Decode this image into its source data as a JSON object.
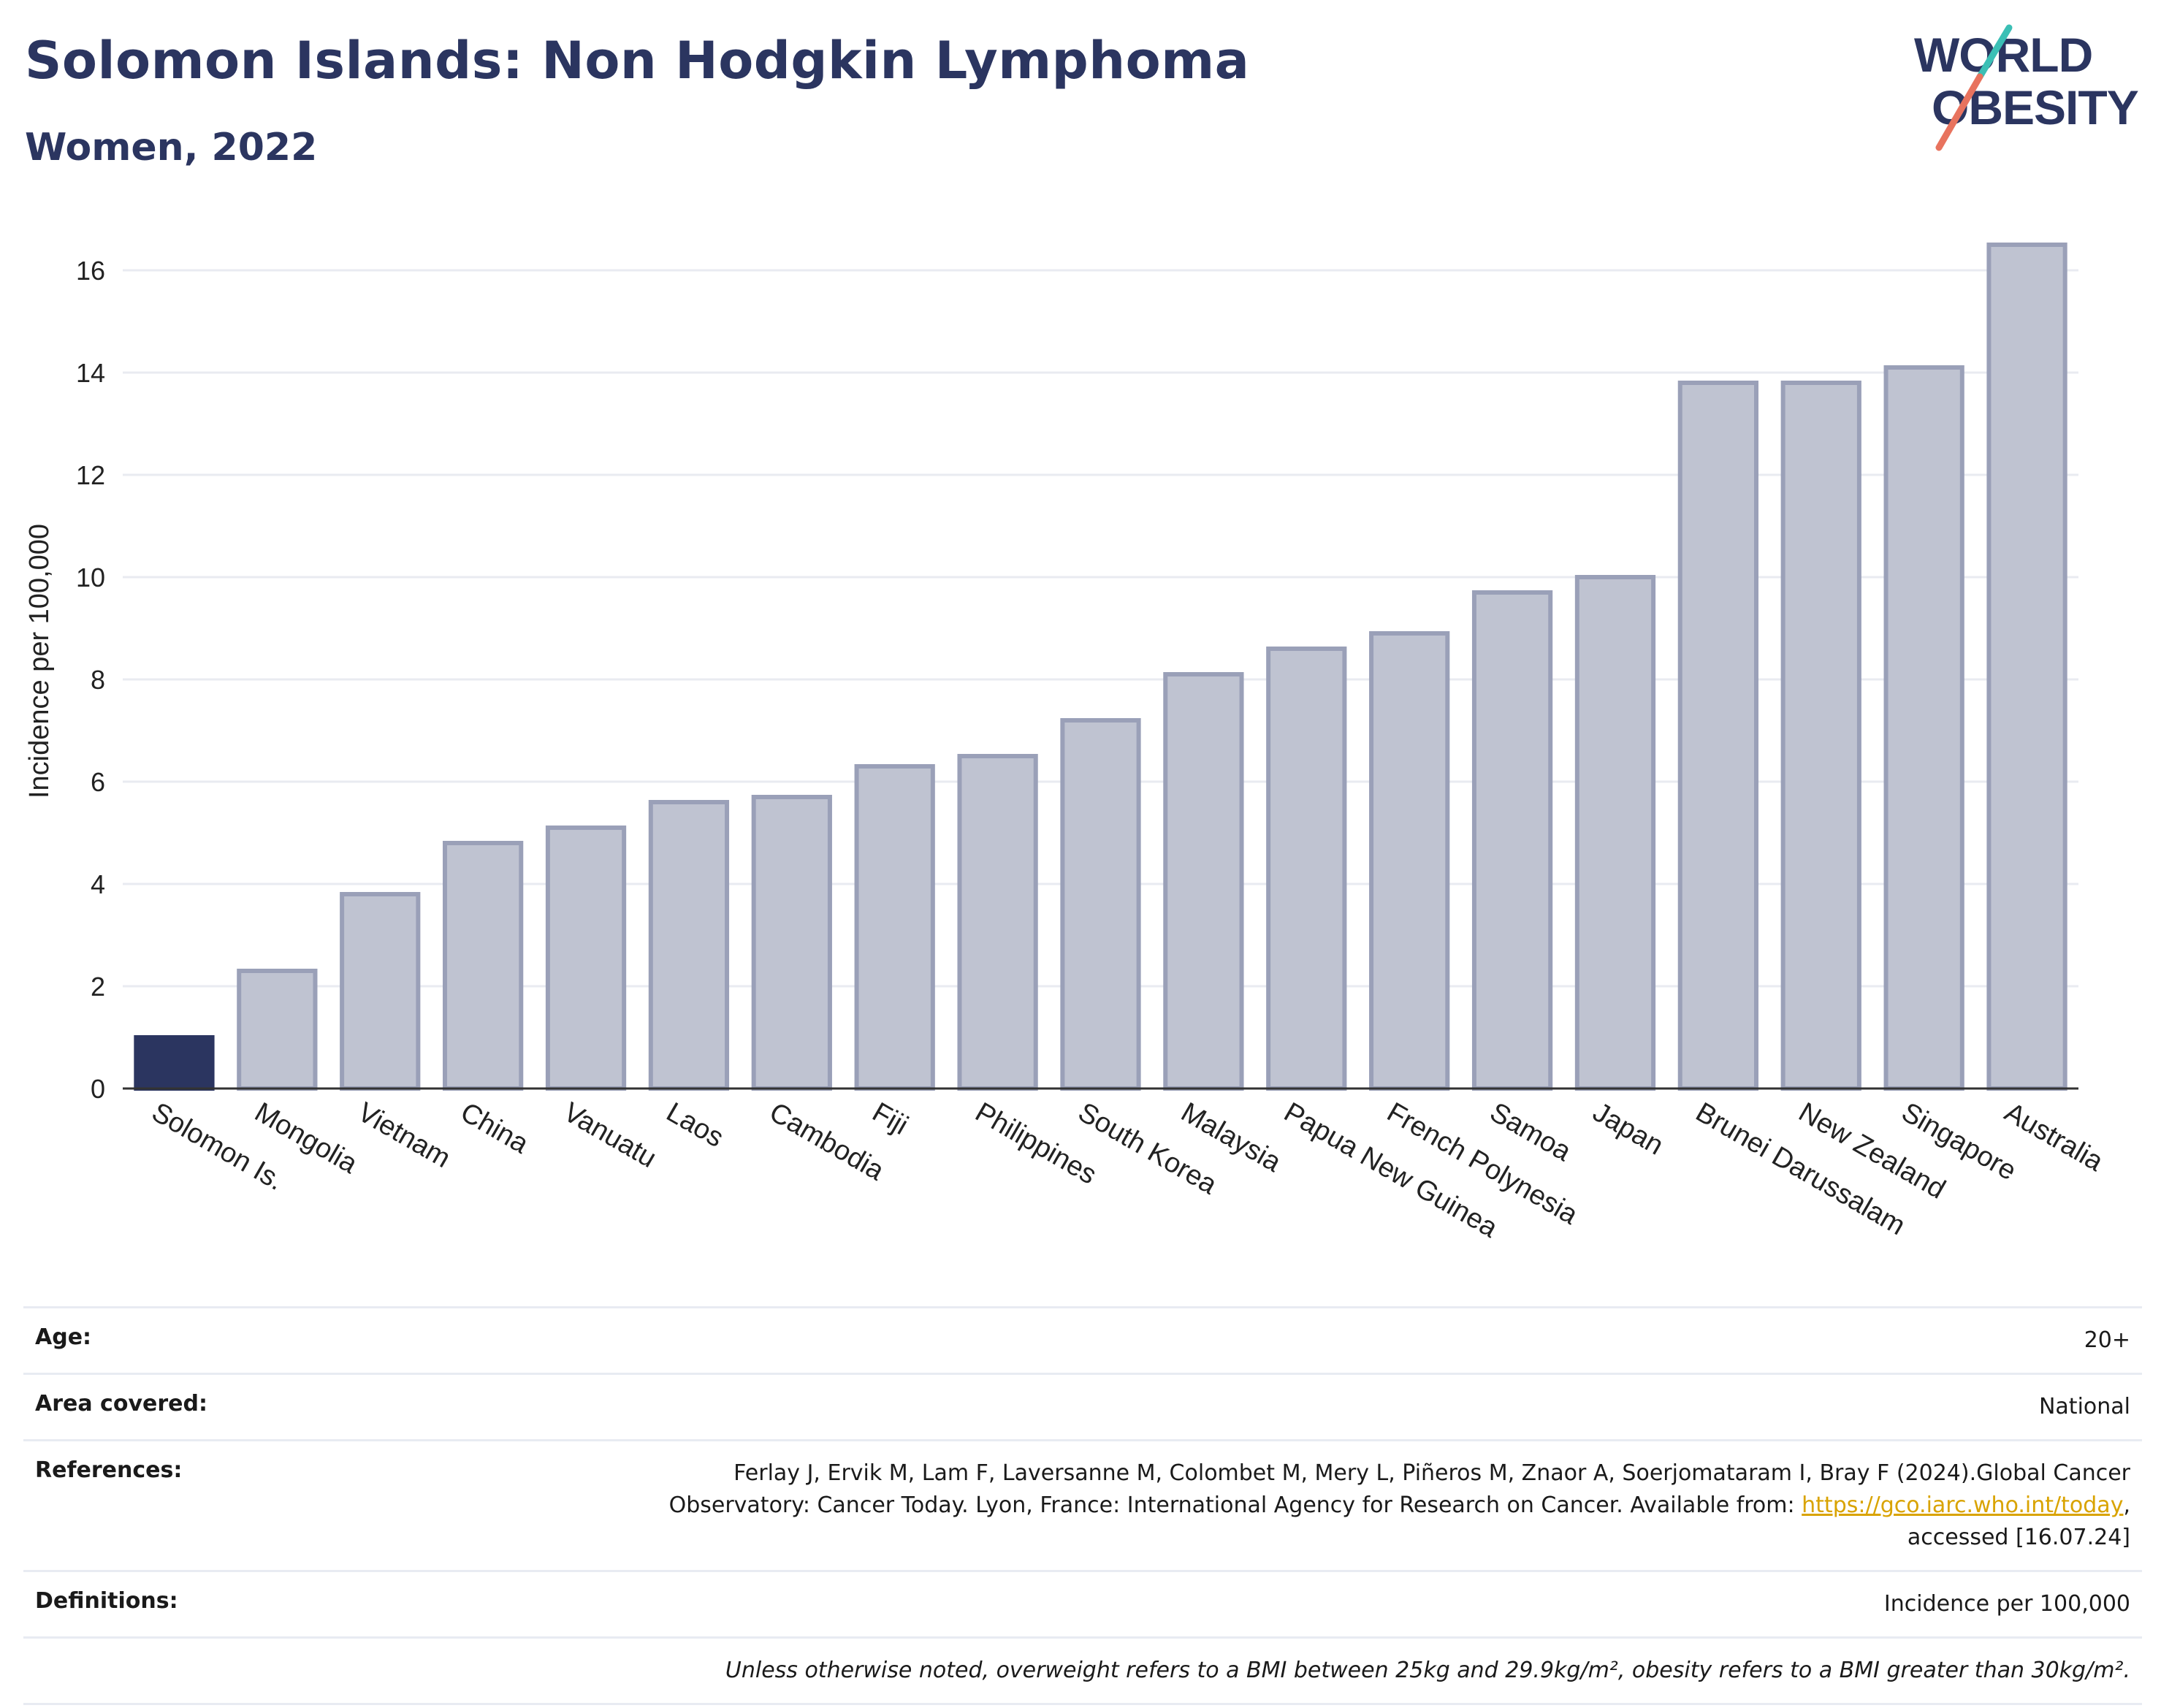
{
  "title": "Solomon Islands: Non Hodgkin Lymphoma",
  "subtitle": "Women, 2022",
  "logo": {
    "line1": "WORLD",
    "line2": "OBESITY",
    "icon": "world-obesity-logo"
  },
  "colors": {
    "highlight": "#2b3560",
    "bar": "#bfc3d1",
    "bar_edge": "#9aa0b8",
    "title": "#2b3560",
    "link": "#d9a300"
  },
  "chart_data": {
    "type": "bar",
    "ylabel": "Incidence per 100,000",
    "xlabel": "",
    "ylim": [
      0,
      17
    ],
    "yticks": [
      0,
      2,
      4,
      6,
      8,
      10,
      12,
      14,
      16
    ],
    "grid": true,
    "highlight_category": "Solomon Is.",
    "categories": [
      "Solomon Is.",
      "Mongolia",
      "Vietnam",
      "China",
      "Vanuatu",
      "Laos",
      "Cambodia",
      "Fiji",
      "Philippines",
      "South Korea",
      "Malaysia",
      "Papua New Guinea",
      "French Polynesia",
      "Samoa",
      "Japan",
      "Brunei Darussalam",
      "New Zealand",
      "Singapore",
      "Australia"
    ],
    "values": [
      1.0,
      2.3,
      3.8,
      4.8,
      5.1,
      5.6,
      5.7,
      6.3,
      6.5,
      7.2,
      8.1,
      8.6,
      8.9,
      9.7,
      10.0,
      13.8,
      13.8,
      14.1,
      16.5
    ]
  },
  "meta": {
    "age_label": "Age:",
    "age_value": "20+",
    "area_label": "Area covered:",
    "area_value": "National",
    "references_label": "References:",
    "references_line1": "Ferlay J, Ervik M, Lam F, Laversanne M, Colombet M, Mery L, Piñeros M, Znaor A, Soerjomataram I, Bray F (2024).Global Cancer",
    "references_line2_pre": "Observatory: Cancer Today. Lyon, France: International Agency for Research on Cancer. Available from: ",
    "references_link": "https://gco.iarc.who.int/today",
    "references_line2_post": ",",
    "references_line3": "accessed [16.07.24]",
    "definitions_label": "Definitions:",
    "definitions_value": "Incidence per 100,000",
    "note": "Unless otherwise noted, overweight refers to a BMI between 25kg and 29.9kg/m², obesity refers to a BMI greater than 30kg/m²."
  }
}
